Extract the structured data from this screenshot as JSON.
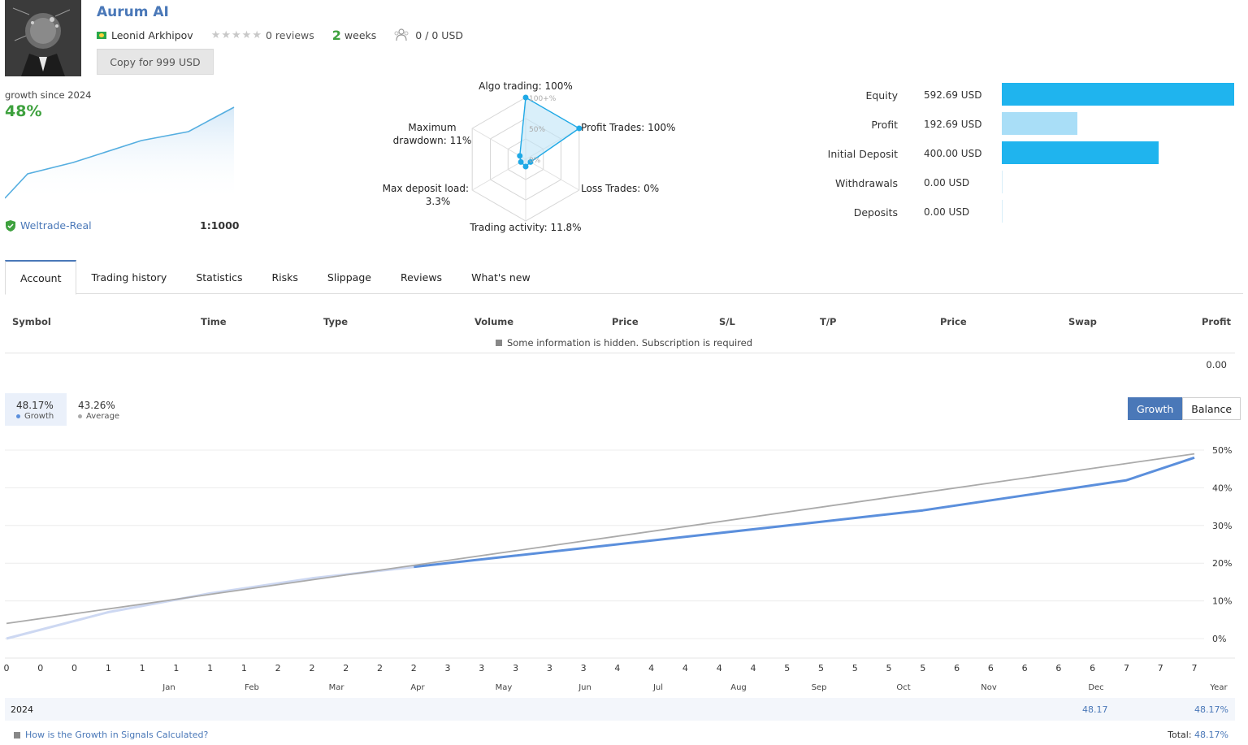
{
  "signal": {
    "title": "Aurum AI",
    "author": "Leonid Arkhipov",
    "stars": "★★★★★",
    "reviews": "0 reviews",
    "weeks_num": "2",
    "weeks_label": "weeks",
    "subscribers": "0 / 0 USD",
    "copy_label": "Copy for 999 USD"
  },
  "growth_summary": {
    "label": "growth since 2024",
    "percent": "48%",
    "broker": "Weltrade-Real",
    "leverage": "1:1000"
  },
  "radar": {
    "labels": {
      "algo": "Algo trading: 100%",
      "profit": "Profit Trades: 100%",
      "loss": "Loss Trades: 0%",
      "activity": "Trading activity: 11.8%",
      "deposit_load_1": "Max deposit load:",
      "deposit_load_2": "3.3%",
      "drawdown_1": "Maximum",
      "drawdown_2": "drawdown: 11%"
    },
    "ring_labels": [
      "100+%",
      "50%",
      "0%"
    ],
    "values": [
      100,
      100,
      0,
      11.8,
      3.3,
      11
    ]
  },
  "bars": [
    {
      "label": "Equity",
      "value": "592.69 USD",
      "amount": 592.69,
      "color": "#1fb4ee"
    },
    {
      "label": "Profit",
      "value": "192.69 USD",
      "amount": 192.69,
      "color": "#a9def7"
    },
    {
      "label": "Initial Deposit",
      "value": "400.00 USD",
      "amount": 400.0,
      "color": "#1fb4ee"
    },
    {
      "label": "Withdrawals",
      "value": "0.00 USD",
      "amount": 0,
      "color": "#1fb4ee"
    },
    {
      "label": "Deposits",
      "value": "0.00 USD",
      "amount": 0,
      "color": "#1fb4ee"
    }
  ],
  "tabs": [
    "Account",
    "Trading history",
    "Statistics",
    "Risks",
    "Slippage",
    "Reviews",
    "What's new"
  ],
  "table": {
    "headers": [
      "Symbol",
      "Time",
      "Type",
      "Volume",
      "Price",
      "S/L",
      "T/P",
      "Price",
      "Swap",
      "Profit"
    ],
    "hidden_note": "Some information is hidden. Subscription is required",
    "total_profit": "0.00"
  },
  "main_chart": {
    "growth_value": "48.17%",
    "growth_label": "Growth",
    "average_value": "43.26%",
    "average_label": "Average",
    "toggle_growth": "Growth",
    "toggle_balance": "Balance"
  },
  "chart_data": {
    "type": "line",
    "x_ticks": [
      "0",
      "0",
      "0",
      "1",
      "1",
      "1",
      "1",
      "1",
      "2",
      "2",
      "2",
      "2",
      "2",
      "3",
      "3",
      "3",
      "3",
      "3",
      "4",
      "4",
      "4",
      "4",
      "4",
      "5",
      "5",
      "5",
      "5",
      "5",
      "6",
      "6",
      "6",
      "6",
      "6",
      "7",
      "7",
      "7"
    ],
    "x_months": [
      "Jan",
      "Feb",
      "Mar",
      "Apr",
      "May",
      "Jun",
      "Jul",
      "Aug",
      "Sep",
      "Oct",
      "Nov",
      "Dec"
    ],
    "x_end_label": "Year",
    "y_ticks": [
      "50%",
      "40%",
      "30%",
      "20%",
      "10%",
      "0%"
    ],
    "ylim": [
      0,
      50
    ],
    "series": [
      {
        "name": "Growth",
        "color": "#5b8fdc",
        "x": [
          0,
          3,
          6,
          9,
          12,
          15,
          18,
          21,
          24,
          27,
          30,
          33,
          35
        ],
        "y": [
          0,
          7,
          12,
          16,
          19,
          22,
          25,
          28,
          31,
          34,
          38,
          42,
          48
        ]
      },
      {
        "name": "Average",
        "color": "#aaaaaa",
        "x": [
          0,
          35
        ],
        "y": [
          4,
          49
        ]
      }
    ]
  },
  "footer": {
    "year": "2024",
    "dec_value": "48.17",
    "year_total": "48.17%",
    "calc_link": "How is the Growth in Signals Calculated?",
    "total_label": "Total:",
    "total_value": "48.17%"
  }
}
